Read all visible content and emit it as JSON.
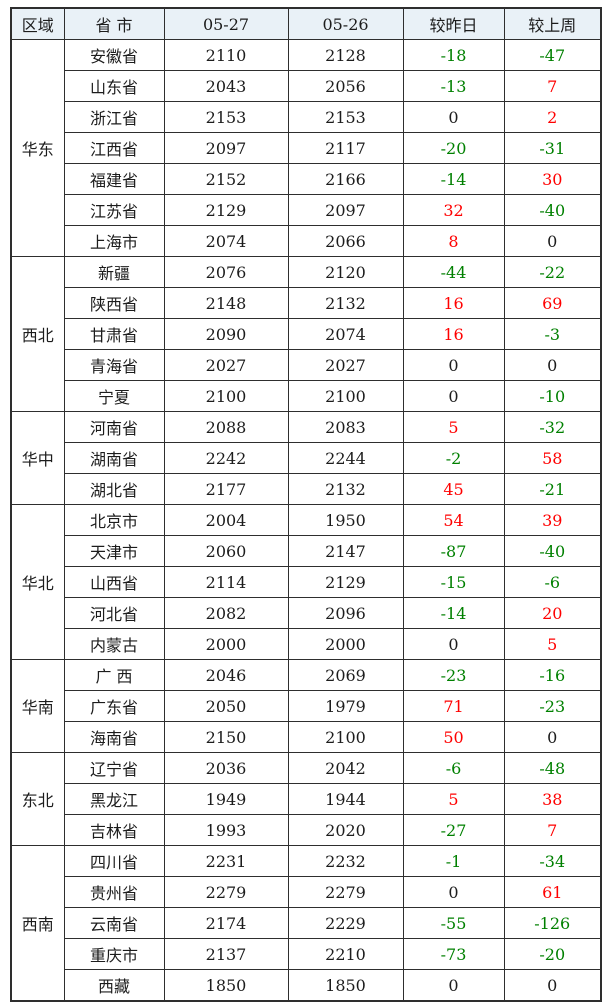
{
  "colors": {
    "positive": "#ff0000",
    "negative": "#008000",
    "zero": "#1c1c1c",
    "header_bg": "#e9f1f7",
    "border": "#2e2e2e"
  },
  "chart_data": {
    "type": "table",
    "columns": [
      "区域",
      "省 市",
      "05-27",
      "05-26",
      "较昨日",
      "较上周"
    ],
    "regions": [
      {
        "name": "华东",
        "rows": [
          {
            "province": "安徽省",
            "price_0527": 2110,
            "price_0526": 2128,
            "vs_yesterday": -18,
            "vs_last_week": -47
          },
          {
            "province": "山东省",
            "price_0527": 2043,
            "price_0526": 2056,
            "vs_yesterday": -13,
            "vs_last_week": 7
          },
          {
            "province": "浙江省",
            "price_0527": 2153,
            "price_0526": 2153,
            "vs_yesterday": 0,
            "vs_last_week": 2
          },
          {
            "province": "江西省",
            "price_0527": 2097,
            "price_0526": 2117,
            "vs_yesterday": -20,
            "vs_last_week": -31
          },
          {
            "province": "福建省",
            "price_0527": 2152,
            "price_0526": 2166,
            "vs_yesterday": -14,
            "vs_last_week": 30
          },
          {
            "province": "江苏省",
            "price_0527": 2129,
            "price_0526": 2097,
            "vs_yesterday": 32,
            "vs_last_week": -40
          },
          {
            "province": "上海市",
            "price_0527": 2074,
            "price_0526": 2066,
            "vs_yesterday": 8,
            "vs_last_week": 0
          }
        ]
      },
      {
        "name": "西北",
        "rows": [
          {
            "province": "新疆",
            "price_0527": 2076,
            "price_0526": 2120,
            "vs_yesterday": -44,
            "vs_last_week": -22
          },
          {
            "province": "陕西省",
            "price_0527": 2148,
            "price_0526": 2132,
            "vs_yesterday": 16,
            "vs_last_week": 69
          },
          {
            "province": "甘肃省",
            "price_0527": 2090,
            "price_0526": 2074,
            "vs_yesterday": 16,
            "vs_last_week": -3
          },
          {
            "province": "青海省",
            "price_0527": 2027,
            "price_0526": 2027,
            "vs_yesterday": 0,
            "vs_last_week": 0
          },
          {
            "province": "宁夏",
            "price_0527": 2100,
            "price_0526": 2100,
            "vs_yesterday": 0,
            "vs_last_week": -10
          }
        ]
      },
      {
        "name": "华中",
        "rows": [
          {
            "province": "河南省",
            "price_0527": 2088,
            "price_0526": 2083,
            "vs_yesterday": 5,
            "vs_last_week": -32
          },
          {
            "province": "湖南省",
            "price_0527": 2242,
            "price_0526": 2244,
            "vs_yesterday": -2,
            "vs_last_week": 58
          },
          {
            "province": "湖北省",
            "price_0527": 2177,
            "price_0526": 2132,
            "vs_yesterday": 45,
            "vs_last_week": -21
          }
        ]
      },
      {
        "name": "华北",
        "rows": [
          {
            "province": "北京市",
            "price_0527": 2004,
            "price_0526": 1950,
            "vs_yesterday": 54,
            "vs_last_week": 39
          },
          {
            "province": "天津市",
            "price_0527": 2060,
            "price_0526": 2147,
            "vs_yesterday": -87,
            "vs_last_week": -40
          },
          {
            "province": "山西省",
            "price_0527": 2114,
            "price_0526": 2129,
            "vs_yesterday": -15,
            "vs_last_week": -6
          },
          {
            "province": "河北省",
            "price_0527": 2082,
            "price_0526": 2096,
            "vs_yesterday": -14,
            "vs_last_week": 20
          },
          {
            "province": "内蒙古",
            "price_0527": 2000,
            "price_0526": 2000,
            "vs_yesterday": 0,
            "vs_last_week": 5
          }
        ]
      },
      {
        "name": "华南",
        "rows": [
          {
            "province": "广 西",
            "price_0527": 2046,
            "price_0526": 2069,
            "vs_yesterday": -23,
            "vs_last_week": -16
          },
          {
            "province": "广东省",
            "price_0527": 2050,
            "price_0526": 1979,
            "vs_yesterday": 71,
            "vs_last_week": -23
          },
          {
            "province": "海南省",
            "price_0527": 2150,
            "price_0526": 2100,
            "vs_yesterday": 50,
            "vs_last_week": 0
          }
        ]
      },
      {
        "name": "东北",
        "rows": [
          {
            "province": "辽宁省",
            "price_0527": 2036,
            "price_0526": 2042,
            "vs_yesterday": -6,
            "vs_last_week": -48
          },
          {
            "province": "黑龙江",
            "price_0527": 1949,
            "price_0526": 1944,
            "vs_yesterday": 5,
            "vs_last_week": 38
          },
          {
            "province": "吉林省",
            "price_0527": 1993,
            "price_0526": 2020,
            "vs_yesterday": -27,
            "vs_last_week": 7
          }
        ]
      },
      {
        "name": "西南",
        "rows": [
          {
            "province": "四川省",
            "price_0527": 2231,
            "price_0526": 2232,
            "vs_yesterday": -1,
            "vs_last_week": -34
          },
          {
            "province": "贵州省",
            "price_0527": 2279,
            "price_0526": 2279,
            "vs_yesterday": 0,
            "vs_last_week": 61
          },
          {
            "province": "云南省",
            "price_0527": 2174,
            "price_0526": 2229,
            "vs_yesterday": -55,
            "vs_last_week": -126
          },
          {
            "province": "重庆市",
            "price_0527": 2137,
            "price_0526": 2210,
            "vs_yesterday": -73,
            "vs_last_week": -20
          },
          {
            "province": "西藏",
            "price_0527": 1850,
            "price_0526": 1850,
            "vs_yesterday": 0,
            "vs_last_week": 0
          }
        ]
      }
    ]
  }
}
